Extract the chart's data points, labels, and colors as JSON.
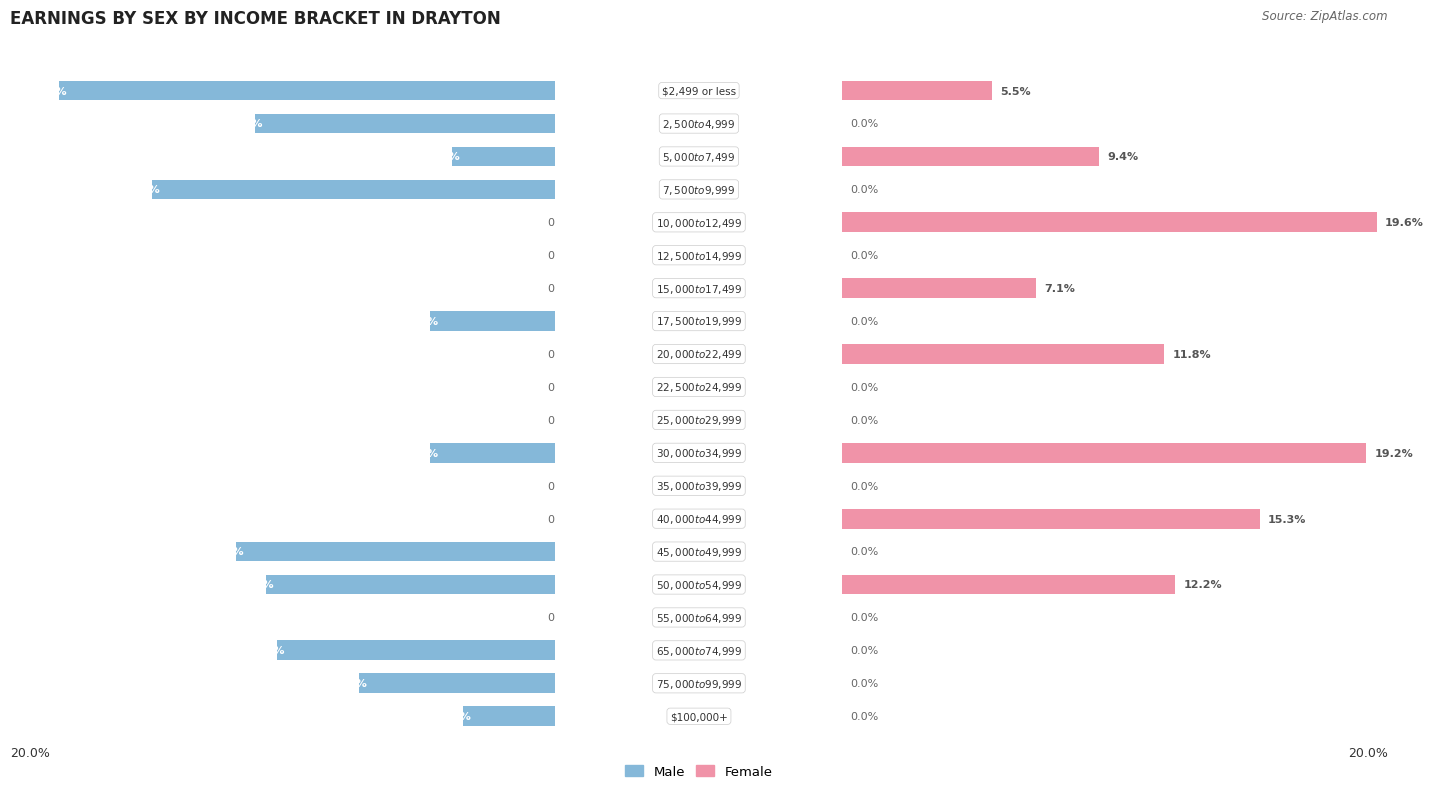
{
  "title": "EARNINGS BY SEX BY INCOME BRACKET IN DRAYTON",
  "source": "Source: ZipAtlas.com",
  "categories": [
    "$2,499 or less",
    "$2,500 to $4,999",
    "$5,000 to $7,499",
    "$7,500 to $9,999",
    "$10,000 to $12,499",
    "$12,500 to $14,999",
    "$15,000 to $17,499",
    "$17,500 to $19,999",
    "$20,000 to $22,499",
    "$22,500 to $24,999",
    "$25,000 to $29,999",
    "$30,000 to $34,999",
    "$35,000 to $39,999",
    "$40,000 to $44,999",
    "$45,000 to $49,999",
    "$50,000 to $54,999",
    "$55,000 to $64,999",
    "$65,000 to $74,999",
    "$75,000 to $99,999",
    "$100,000+"
  ],
  "male_values": [
    18.2,
    11.0,
    3.8,
    14.8,
    0.0,
    0.0,
    0.0,
    4.6,
    0.0,
    0.0,
    0.0,
    4.6,
    0.0,
    0.0,
    11.7,
    10.6,
    0.0,
    10.2,
    7.2,
    3.4
  ],
  "female_values": [
    5.5,
    0.0,
    9.4,
    0.0,
    19.6,
    0.0,
    7.1,
    0.0,
    11.8,
    0.0,
    0.0,
    19.2,
    0.0,
    15.3,
    0.0,
    12.2,
    0.0,
    0.0,
    0.0,
    0.0
  ],
  "male_color": "#85b8d9",
  "female_color": "#f093a8",
  "bar_height": 0.6,
  "xlim": 20.0,
  "legend_male": "Male",
  "legend_female": "Female",
  "row_color_odd": "#ebebeb",
  "row_color_even": "#f7f7f7",
  "title_fontsize": 12,
  "source_fontsize": 8.5,
  "label_fontsize": 8,
  "cat_fontsize": 7.5,
  "axis_label_fontsize": 9
}
